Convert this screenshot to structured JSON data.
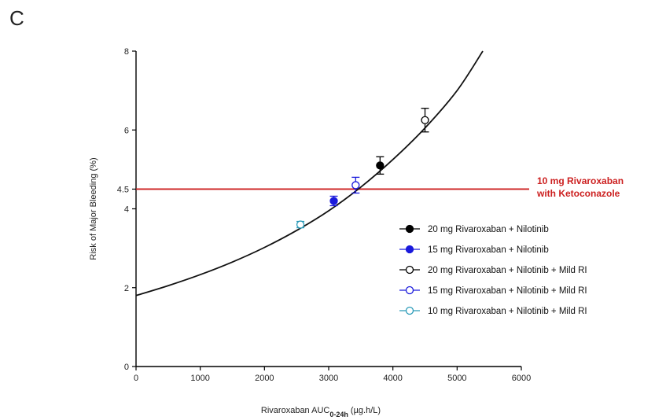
{
  "panel_label": "C",
  "chart_data": {
    "type": "scatter",
    "xlabel_main": "Rivaroxaban AUC",
    "xlabel_sub": "0-24h",
    "xlabel_unit": " (µg.h/L)",
    "ylabel": "Risk of Major Bleeding (%)",
    "xlim": [
      0,
      6000
    ],
    "ylim": [
      0,
      8
    ],
    "x_ticks": [
      "0",
      "1000",
      "2000",
      "3000",
      "4000",
      "5000",
      "6000"
    ],
    "y_ticks": [
      {
        "value": 0,
        "label": "0"
      },
      {
        "value": 2,
        "label": "2"
      },
      {
        "value": 4,
        "label": "4"
      },
      {
        "value": 4.5,
        "label": "4.5"
      },
      {
        "value": 6,
        "label": "6"
      },
      {
        "value": 8,
        "label": "8"
      }
    ],
    "curve": {
      "x": [
        0,
        500,
        1000,
        1500,
        2000,
        2500,
        3000,
        3500,
        4000,
        4500,
        5000,
        5400
      ],
      "y": [
        1.8,
        2.05,
        2.33,
        2.65,
        3.02,
        3.45,
        3.95,
        4.55,
        5.25,
        6.05,
        7.0,
        8.0
      ]
    },
    "reference_line": {
      "y": 4.5,
      "label_line1": "10 mg Rivaroxaban",
      "label_line2": "with Ketoconazole",
      "color": "#cc1f1f"
    },
    "series": [
      {
        "name": "20 mg Rivaroxaban + Nilotinib",
        "x": 3800,
        "y": 5.1,
        "err": 0.22,
        "color": "#000000",
        "filled": true
      },
      {
        "name": "15 mg Rivaroxaban + Nilotinib",
        "x": 3080,
        "y": 4.2,
        "err": 0.12,
        "color": "#1a1adc",
        "filled": true
      },
      {
        "name": "20 mg Rivaroxaban + Nilotinib + Mild RI",
        "x": 4500,
        "y": 6.25,
        "err": 0.3,
        "color": "#000000",
        "filled": false
      },
      {
        "name": "15 mg Rivaroxaban + Nilotinib + Mild RI",
        "x": 3420,
        "y": 4.6,
        "err": 0.2,
        "color": "#1a1adc",
        "filled": false
      },
      {
        "name": "10 mg Rivaroxaban + Nilotinib + Mild RI",
        "x": 2560,
        "y": 3.6,
        "err": 0.08,
        "color": "#2a9ab8",
        "filled": false
      }
    ],
    "legend_position": "right"
  }
}
